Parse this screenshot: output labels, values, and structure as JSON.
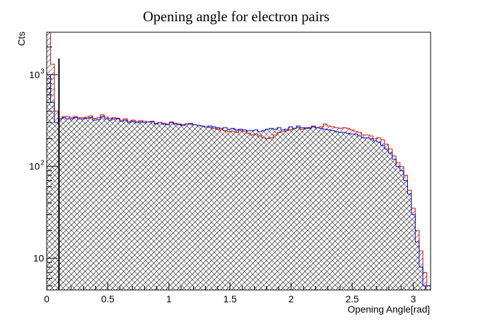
{
  "chart_data": {
    "type": "histogram",
    "title": "Opening angle for electron pairs",
    "xlabel": "Opening Angle[rad]",
    "ylabel": "Cts",
    "x_range": [
      0,
      3.1416
    ],
    "y_range": [
      4.5,
      2900
    ],
    "y_scale": "log",
    "x_ticks": [
      {
        "value": 0,
        "label": "0"
      },
      {
        "value": 0.5,
        "label": "0.5"
      },
      {
        "value": 1,
        "label": "1"
      },
      {
        "value": 1.5,
        "label": "1.5"
      },
      {
        "value": 2,
        "label": "2"
      },
      {
        "value": 2.5,
        "label": "2.5"
      },
      {
        "value": 3,
        "label": "3"
      }
    ],
    "y_ticks": [
      {
        "value": 10,
        "label": "10"
      },
      {
        "value": 100,
        "label": "10",
        "exp": "2"
      },
      {
        "value": 1000,
        "label": "10",
        "exp": "3"
      }
    ],
    "cut_line_x": 0.1,
    "cut_line_top": 1500,
    "grid": false,
    "series": [
      {
        "color": "#0000cc",
        "fill": "cross-hatch",
        "bin_edges": [
          0,
          0.0314,
          0.0628,
          0.0943,
          0.1257,
          0.1571,
          0.1885,
          0.2199,
          0.2513,
          0.2827,
          0.3142,
          0.3456,
          0.377,
          0.4084,
          0.4398,
          0.4712,
          0.5027,
          0.5341,
          0.5655,
          0.5969,
          0.6283,
          0.6597,
          0.6912,
          0.7226,
          0.754,
          0.7854,
          0.8168,
          0.8482,
          0.8796,
          0.9111,
          0.9425,
          0.9739,
          1.0053,
          1.0367,
          1.0681,
          1.0996,
          1.131,
          1.1624,
          1.1938,
          1.2252,
          1.2566,
          1.2881,
          1.3195,
          1.3509,
          1.3823,
          1.4137,
          1.4451,
          1.4765,
          1.508,
          1.5394,
          1.5708,
          1.6022,
          1.6336,
          1.665,
          1.6965,
          1.7279,
          1.7593,
          1.7907,
          1.8221,
          1.8535,
          1.885,
          1.9164,
          1.9478,
          1.9792,
          2.0106,
          2.042,
          2.0735,
          2.1049,
          2.1363,
          2.1677,
          2.1991,
          2.2305,
          2.2619,
          2.2934,
          2.3248,
          2.3562,
          2.3876,
          2.419,
          2.4504,
          2.4819,
          2.5133,
          2.5447,
          2.5761,
          2.6075,
          2.6389,
          2.6704,
          2.7018,
          2.7332,
          2.7646,
          2.796,
          2.8274,
          2.8588,
          2.8903,
          2.9217,
          2.9531,
          2.9845,
          3.0159,
          3.0473,
          3.0788,
          3.1102,
          3.1416
        ],
        "counts": [
          1000,
          500,
          300,
          330,
          340,
          330,
          330,
          340,
          330,
          330,
          335,
          340,
          320,
          325,
          350,
          330,
          320,
          330,
          330,
          310,
          320,
          300,
          310,
          300,
          305,
          300,
          305,
          310,
          290,
          300,
          290,
          285,
          300,
          290,
          285,
          280,
          290,
          290,
          285,
          280,
          275,
          270,
          275,
          270,
          265,
          260,
          265,
          255,
          260,
          250,
          255,
          250,
          245,
          245,
          250,
          240,
          245,
          255,
          260,
          255,
          265,
          250,
          255,
          270,
          260,
          275,
          265,
          260,
          265,
          270,
          265,
          260,
          255,
          250,
          245,
          240,
          235,
          235,
          230,
          225,
          225,
          215,
          205,
          205,
          200,
          190,
          185,
          170,
          155,
          140,
          120,
          100,
          90,
          70,
          50,
          30,
          15,
          8,
          5,
          5
        ]
      },
      {
        "color": "#dd0000",
        "fill": "diagonal-hatch",
        "bin_edges": [
          0,
          0.0314,
          0.0628,
          0.0943,
          0.1257,
          0.1571,
          0.1885,
          0.2199,
          0.2513,
          0.2827,
          0.3142,
          0.3456,
          0.377,
          0.4084,
          0.4398,
          0.4712,
          0.5027,
          0.5341,
          0.5655,
          0.5969,
          0.6283,
          0.6597,
          0.6912,
          0.7226,
          0.754,
          0.7854,
          0.8168,
          0.8482,
          0.8796,
          0.9111,
          0.9425,
          0.9739,
          1.0053,
          1.0367,
          1.0681,
          1.0996,
          1.131,
          1.1624,
          1.1938,
          1.2252,
          1.2566,
          1.2881,
          1.3195,
          1.3509,
          1.3823,
          1.4137,
          1.4451,
          1.4765,
          1.508,
          1.5394,
          1.5708,
          1.6022,
          1.6336,
          1.665,
          1.6965,
          1.7279,
          1.7593,
          1.7907,
          1.8221,
          1.8535,
          1.885,
          1.9164,
          1.9478,
          1.9792,
          2.0106,
          2.042,
          2.0735,
          2.1049,
          2.1363,
          2.1677,
          2.1991,
          2.2305,
          2.2619,
          2.2934,
          2.3248,
          2.3562,
          2.3876,
          2.419,
          2.4504,
          2.4819,
          2.5133,
          2.5447,
          2.5761,
          2.6075,
          2.6389,
          2.6704,
          2.7018,
          2.7332,
          2.7646,
          2.796,
          2.8274,
          2.8588,
          2.8903,
          2.9217,
          2.9531,
          2.9845,
          3.0159,
          3.0473,
          3.0788,
          3.1102,
          3.1416
        ],
        "counts": [
          2900,
          1300,
          400,
          330,
          350,
          350,
          340,
          350,
          340,
          340,
          345,
          355,
          335,
          340,
          365,
          345,
          335,
          340,
          335,
          320,
          330,
          310,
          320,
          310,
          315,
          310,
          305,
          305,
          295,
          300,
          295,
          290,
          305,
          295,
          290,
          285,
          290,
          295,
          285,
          280,
          275,
          270,
          265,
          260,
          255,
          250,
          245,
          240,
          240,
          235,
          245,
          240,
          230,
          220,
          225,
          215,
          205,
          200,
          205,
          220,
          235,
          240,
          245,
          250,
          260,
          265,
          255,
          265,
          260,
          275,
          265,
          270,
          290,
          275,
          270,
          265,
          260,
          265,
          260,
          250,
          240,
          235,
          220,
          220,
          215,
          200,
          205,
          195,
          175,
          155,
          130,
          110,
          100,
          80,
          55,
          35,
          20,
          12,
          7,
          5
        ]
      }
    ]
  }
}
